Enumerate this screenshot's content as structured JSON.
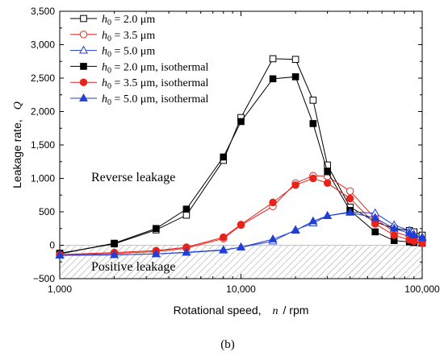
{
  "figure_label": "(b)",
  "colors": {
    "black": "#000000",
    "red": "#e8231a",
    "blue": "#1f3fd6",
    "hatch": "#9a9a9a"
  },
  "chart_data": {
    "type": "line",
    "x_scale": "log",
    "xlim": [
      1000,
      100000
    ],
    "ylim": [
      -500,
      3500
    ],
    "xlabel": {
      "name": "Rotational speed,",
      "symbol": "n",
      "unit": "/ rpm"
    },
    "ylabel": {
      "name": "Leakage rate,",
      "symbol": "Q"
    },
    "x_ticks": [
      {
        "value": 1000,
        "label": "1,000"
      },
      {
        "value": 10000,
        "label": "10,000"
      },
      {
        "value": 100000,
        "label": "100,000"
      }
    ],
    "y_ticks": [
      {
        "value": -500,
        "label": "−500"
      },
      {
        "value": 0,
        "label": "0"
      },
      {
        "value": 500,
        "label": "500"
      },
      {
        "value": 1000,
        "label": "1,000"
      },
      {
        "value": 1500,
        "label": "1,500"
      },
      {
        "value": 2000,
        "label": "2,000"
      },
      {
        "value": 2500,
        "label": "2,500"
      },
      {
        "value": 3000,
        "label": "3,000"
      },
      {
        "value": 3500,
        "label": "3,500"
      }
    ],
    "grid": false,
    "legend_position": "top-left",
    "annotations": {
      "reverse": "Reverse leakage",
      "positive": "Positive leakage"
    },
    "shaded_region": {
      "from": -500,
      "to": 0,
      "pattern": "hatched"
    },
    "series": [
      {
        "legend": {
          "sym": "h",
          "sub": "0",
          "text": " = 2.0 μm"
        },
        "color": "black",
        "marker": "square",
        "filled": false,
        "x": [
          1000,
          2000,
          3400,
          5000,
          8000,
          10000,
          15000,
          20000,
          25000,
          30000,
          40000,
          55000,
          70000,
          85000,
          90000,
          100000
        ],
        "y": [
          -120,
          20,
          230,
          450,
          1270,
          1910,
          2790,
          2780,
          2170,
          1200,
          570,
          350,
          250,
          220,
          200,
          150
        ]
      },
      {
        "legend": {
          "sym": "h",
          "sub": "0",
          "text": " = 3.5 μm"
        },
        "color": "red",
        "marker": "circle",
        "filled": false,
        "x": [
          1000,
          2000,
          3400,
          5000,
          8000,
          10000,
          15000,
          20000,
          25000,
          30000,
          40000,
          55000,
          70000,
          85000,
          90000,
          100000
        ],
        "y": [
          -145,
          -125,
          -95,
          -45,
          100,
          300,
          580,
          930,
          1040,
          1030,
          810,
          400,
          200,
          130,
          100,
          70
        ]
      },
      {
        "legend": {
          "sym": "h",
          "sub": "0",
          "text": " = 5.0 μm"
        },
        "color": "blue",
        "marker": "triangle",
        "filled": false,
        "x": [
          1000,
          2000,
          3400,
          5000,
          8000,
          10000,
          15000,
          20000,
          25000,
          30000,
          40000,
          55000,
          70000,
          85000,
          90000,
          100000
        ],
        "y": [
          -150,
          -145,
          -130,
          -105,
          -70,
          -30,
          60,
          230,
          330,
          440,
          500,
          480,
          300,
          220,
          160,
          120
        ]
      },
      {
        "legend": {
          "sym": "h",
          "sub": "0",
          "text": " = 2.0 μm, isothermal"
        },
        "color": "black",
        "marker": "square",
        "filled": true,
        "x": [
          1000,
          2000,
          3400,
          5000,
          8000,
          10000,
          15000,
          20000,
          25000,
          30000,
          40000,
          55000,
          70000,
          85000,
          90000,
          100000
        ],
        "y": [
          -130,
          30,
          250,
          540,
          1320,
          1850,
          2490,
          2520,
          1820,
          1100,
          520,
          200,
          70,
          50,
          40,
          30
        ]
      },
      {
        "legend": {
          "sym": "h",
          "sub": "0",
          "text": " = 3.5 μm, isothermal"
        },
        "color": "red",
        "marker": "circle",
        "filled": true,
        "x": [
          1000,
          2000,
          3400,
          5000,
          8000,
          10000,
          15000,
          20000,
          25000,
          30000,
          40000,
          55000,
          70000,
          85000,
          90000,
          100000
        ],
        "y": [
          -140,
          -110,
          -80,
          -30,
          120,
          310,
          640,
          900,
          1000,
          930,
          700,
          320,
          150,
          80,
          60,
          30
        ]
      },
      {
        "legend": {
          "sym": "h",
          "sub": "0",
          "text": " = 5.0 μm, isothermal"
        },
        "color": "blue",
        "marker": "triangle",
        "filled": true,
        "x": [
          1000,
          2000,
          3400,
          5000,
          8000,
          10000,
          15000,
          20000,
          25000,
          30000,
          40000,
          55000,
          70000,
          85000,
          90000,
          100000
        ],
        "y": [
          -150,
          -145,
          -130,
          -110,
          -75,
          -30,
          90,
          220,
          360,
          440,
          490,
          410,
          250,
          180,
          150,
          110
        ]
      }
    ]
  }
}
